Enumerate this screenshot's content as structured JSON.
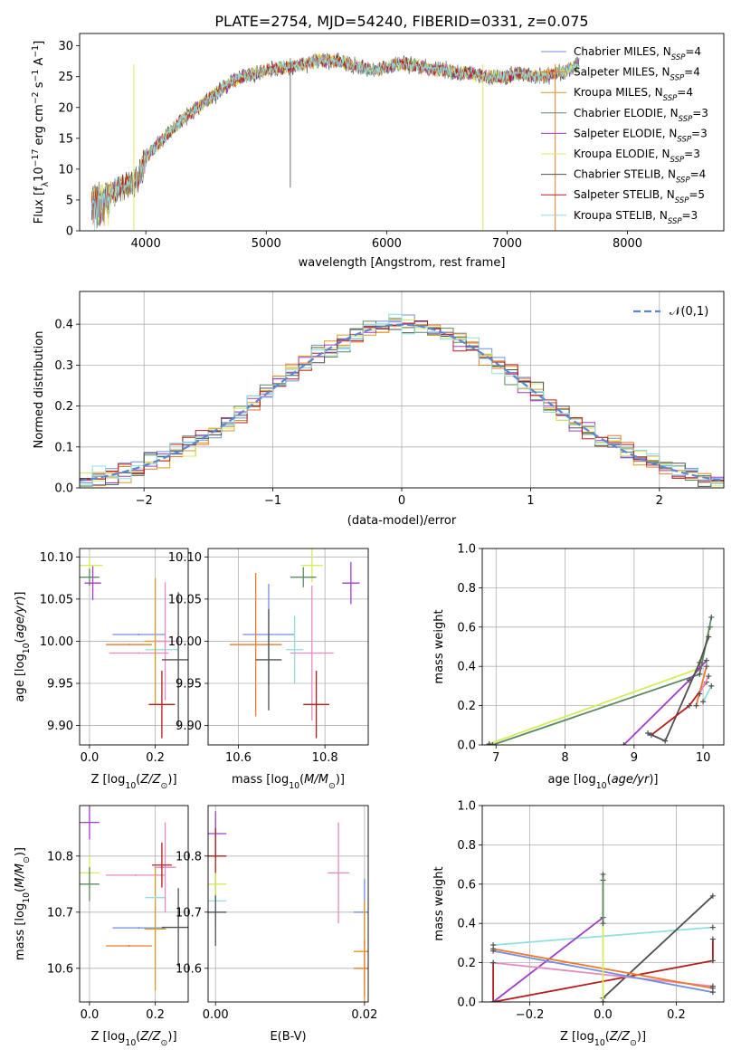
{
  "figure": {
    "title": "PLATE=2754, MJD=54240, FIBERID=0331, z=0.075"
  },
  "series_styles": [
    {
      "name": "Chabrier MILES",
      "nssp": "4",
      "color": "#6f8fe0"
    },
    {
      "name": "Salpeter MILES",
      "nssp": "4",
      "color": "#ee7a2a"
    },
    {
      "name": "Kroupa MILES",
      "nssp": "4",
      "color": "#dd9a1b"
    },
    {
      "name": "Chabrier ELODIE",
      "nssp": "3",
      "color": "#5a8a62"
    },
    {
      "name": "Salpeter ELODIE",
      "nssp": "3",
      "color": "#a03cc8"
    },
    {
      "name": "Kroupa ELODIE",
      "nssp": "3",
      "color": "#d4ec5a"
    },
    {
      "name": "Chabrier STELIB",
      "nssp": "4",
      "color": "#505050"
    },
    {
      "name": "Salpeter STELIB",
      "nssp": "5",
      "color": "#b81c1c"
    },
    {
      "name": "Kroupa STELIB",
      "nssp": "3",
      "color": "#8ee0e0"
    }
  ],
  "extra_colors": {
    "pink": "#e58ac0"
  },
  "chart_data": [
    {
      "id": "spectrum",
      "type": "line",
      "xlabel": "wavelength [Angstrom, rest frame]",
      "ylabel": "Flux [f_λ 10^-17 erg cm^-2 s^-1 A^-1]",
      "xlim": [
        3450,
        8800
      ],
      "ylim": [
        0,
        32
      ],
      "xticks": [
        4000,
        5000,
        6000,
        7000,
        8000
      ],
      "yticks": [
        0,
        5,
        10,
        15,
        20,
        25,
        30
      ],
      "legend_position": "top-right",
      "continuum": {
        "x": [
          3550,
          3700,
          3850,
          3930,
          4000,
          4100,
          4200,
          4300,
          4400,
          4500,
          4600,
          4700,
          4800,
          4900,
          5000,
          5100,
          5200,
          5300,
          5400,
          5500,
          5600,
          5700,
          5800,
          5900,
          6000,
          6100,
          6200,
          6300,
          6400,
          6500,
          6600,
          6700,
          6800,
          6900,
          7000,
          7100,
          7200,
          7300,
          7400,
          7500,
          7600,
          7700
        ],
        "y": [
          5,
          6,
          7.5,
          8,
          12,
          14,
          16,
          18,
          19.5,
          21,
          22.5,
          24,
          25,
          25.5,
          26,
          26.5,
          26.5,
          27,
          27.5,
          27.5,
          27.5,
          27,
          26.5,
          26,
          26.5,
          27,
          27,
          26.5,
          26,
          26,
          25.5,
          25.5,
          25,
          25,
          25,
          25.5,
          25,
          25,
          25.5,
          26,
          27,
          27
        ]
      },
      "spike_lines": [
        {
          "x": 3900,
          "color": "#d4ec5a"
        },
        {
          "x": 6800,
          "color": "#d4ec5a"
        },
        {
          "x": 7400,
          "color": "#ee7a2a"
        }
      ]
    },
    {
      "id": "residual-histogram",
      "type": "bar",
      "xlabel": "(data-model)/error",
      "ylabel": "Normed distribution",
      "xlim": [
        -2.5,
        2.5
      ],
      "ylim": [
        0,
        0.48
      ],
      "xticks": [
        -2,
        -1,
        0,
        1,
        2
      ],
      "yticks": [
        0.0,
        0.1,
        0.2,
        0.3,
        0.4
      ],
      "bin_width": 0.1,
      "reference_curve": {
        "label": "𝒩(0,1)",
        "mean": 0,
        "sigma": 1,
        "color": "#5a86d4"
      },
      "legend_position": "top-right"
    },
    {
      "id": "age-vs-Z",
      "type": "scatter",
      "xlabel": "Z [log10(Z/Z⊙)]",
      "ylabel": "age [log10(age/yr)]",
      "xlim": [
        -0.03,
        0.3
      ],
      "ylim": [
        9.877,
        10.11
      ],
      "xticks": [
        0.0,
        0.2
      ],
      "yticks": [
        9.9,
        9.95,
        10.0,
        10.05,
        10.1
      ],
      "points": [
        {
          "x": 0.15,
          "xerr": 0.08,
          "y": 10.008,
          "yerr": 0.0,
          "color": "#6f8fe0"
        },
        {
          "x": 0.12,
          "xerr": 0.07,
          "y": 9.996,
          "yerr": 0.0,
          "color": "#ee7a2a"
        },
        {
          "x": 0.0,
          "xerr": 0.04,
          "y": 10.09,
          "yerr": 0.01,
          "color": "#d4ec5a"
        },
        {
          "x": 0.0,
          "xerr": 0.03,
          "y": 10.076,
          "yerr": 0.01,
          "color": "#5a8a62"
        },
        {
          "x": 0.01,
          "xerr": 0.025,
          "y": 10.069,
          "yerr": 0.02,
          "color": "#a03cc8"
        },
        {
          "x": 0.22,
          "xerr": 0.05,
          "y": 9.99,
          "yerr": 0.0,
          "color": "#8ee0e0"
        },
        {
          "x": 0.15,
          "xerr": 0.09,
          "y": 9.986,
          "yerr": 0.0,
          "color": "#e58ac0"
        },
        {
          "x": 0.2,
          "xerr": 0.0,
          "y": 10.0,
          "yerr": 0.075,
          "color": "#dd9a1b"
        },
        {
          "x": 0.23,
          "xerr": 0.0,
          "y": 10.0,
          "yerr": 0.07,
          "color": "#e58ac0"
        },
        {
          "x": 0.27,
          "xerr": 0.05,
          "y": 9.978,
          "yerr": 0.08,
          "color": "#505050"
        },
        {
          "x": 0.22,
          "xerr": 0.04,
          "y": 9.925,
          "yerr": 0.04,
          "color": "#b81c1c"
        }
      ]
    },
    {
      "id": "age-vs-mass",
      "type": "scatter",
      "xlabel": "mass [log10(M/M⊙)]",
      "ylabel": "",
      "xlim": [
        10.53,
        10.9
      ],
      "ylim": [
        9.877,
        10.11
      ],
      "xticks": [
        10.6,
        10.8
      ],
      "yticks": [
        9.9,
        9.95,
        10.0,
        10.05,
        10.1
      ],
      "points": [
        {
          "x": 10.67,
          "xerr": 0.06,
          "y": 10.008,
          "yerr": 0.06,
          "color": "#6f8fe0"
        },
        {
          "x": 10.64,
          "xerr": 0.06,
          "y": 9.996,
          "yerr": 0.085,
          "color": "#ee7a2a"
        },
        {
          "x": 10.77,
          "xerr": 0.0,
          "y": 10.09,
          "yerr": 0.02,
          "color": "#d4ec5a"
        },
        {
          "x": 10.75,
          "xerr": 0.03,
          "y": 10.076,
          "yerr": 0.012,
          "color": "#5a8a62"
        },
        {
          "x": 10.86,
          "xerr": 0.02,
          "y": 10.069,
          "yerr": 0.025,
          "color": "#a03cc8"
        },
        {
          "x": 10.73,
          "xerr": 0.02,
          "y": 9.99,
          "yerr": 0.04,
          "color": "#8ee0e0"
        },
        {
          "x": 10.77,
          "xerr": 0.05,
          "y": 9.986,
          "yerr": 0.08,
          "color": "#e58ac0"
        },
        {
          "x": 10.67,
          "xerr": 0.03,
          "y": 9.978,
          "yerr": 0.06,
          "color": "#505050"
        },
        {
          "x": 10.78,
          "xerr": 0.03,
          "y": 9.925,
          "yerr": 0.04,
          "color": "#b81c1c"
        }
      ]
    },
    {
      "id": "mass-weight-vs-age",
      "type": "line",
      "xlabel": "age [log10(age/yr)]",
      "ylabel": "mass weight",
      "xlim": [
        6.8,
        10.3
      ],
      "ylim": [
        0,
        1.0
      ],
      "xticks": [
        7,
        8,
        9,
        10
      ],
      "yticks": [
        0.0,
        0.2,
        0.4,
        0.6,
        0.8,
        1.0
      ],
      "series": [
        {
          "color": "#d4ec5a",
          "x": [
            6.9,
            9.95,
            10.1
          ],
          "y": [
            0.005,
            0.39,
            0.6
          ]
        },
        {
          "color": "#5a8a62",
          "x": [
            6.95,
            9.95,
            10.12
          ],
          "y": [
            0.0,
            0.36,
            0.65
          ]
        },
        {
          "color": "#a03cc8",
          "x": [
            8.85,
            9.8,
            10.05
          ],
          "y": [
            0.0,
            0.33,
            0.43
          ]
        },
        {
          "color": "#505050",
          "x": [
            9.2,
            9.45,
            9.95,
            10.08
          ],
          "y": [
            0.06,
            0.02,
            0.42,
            0.55
          ]
        },
        {
          "color": "#b81c1c",
          "x": [
            9.25,
            9.8,
            10.05
          ],
          "y": [
            0.05,
            0.2,
            0.32
          ]
        },
        {
          "color": "#ee7a2a",
          "x": [
            9.9,
            10.05
          ],
          "y": [
            0.2,
            0.4
          ]
        },
        {
          "color": "#e58ac0",
          "x": [
            9.95,
            10.08
          ],
          "y": [
            0.26,
            0.35
          ]
        },
        {
          "color": "#8ee0e0",
          "x": [
            10.0,
            10.12
          ],
          "y": [
            0.22,
            0.3
          ]
        }
      ]
    },
    {
      "id": "mass-vs-Z",
      "type": "scatter",
      "xlabel": "Z [log10(Z/Z⊙)]",
      "ylabel": "mass [log10(M/M⊙)]",
      "xlim": [
        -0.03,
        0.3
      ],
      "ylim": [
        10.54,
        10.89
      ],
      "xticks": [
        0.0,
        0.2
      ],
      "yticks": [
        10.6,
        10.7,
        10.8
      ],
      "points": [
        {
          "x": 0.15,
          "xerr": 0.08,
          "y": 10.672,
          "yerr": 0.0,
          "color": "#6f8fe0"
        },
        {
          "x": 0.12,
          "xerr": 0.07,
          "y": 10.64,
          "yerr": 0.0,
          "color": "#ee7a2a"
        },
        {
          "x": 0.0,
          "xerr": 0.03,
          "y": 10.86,
          "yerr": 0.03,
          "color": "#a03cc8"
        },
        {
          "x": 0.0,
          "xerr": 0.03,
          "y": 10.77,
          "yerr": 0.03,
          "color": "#d4ec5a"
        },
        {
          "x": 0.0,
          "xerr": 0.03,
          "y": 10.75,
          "yerr": 0.03,
          "color": "#5a8a62"
        },
        {
          "x": 0.14,
          "xerr": 0.09,
          "y": 10.766,
          "yerr": 0.0,
          "color": "#e58ac0"
        },
        {
          "x": 0.2,
          "xerr": 0.0,
          "y": 10.67,
          "yerr": 0.11,
          "color": "#dd9a1b"
        },
        {
          "x": 0.2,
          "xerr": 0.03,
          "y": 10.726,
          "yerr": 0.0,
          "color": "#8ee0e0"
        },
        {
          "x": 0.23,
          "xerr": 0.0,
          "y": 10.78,
          "yerr": 0.08,
          "color": "#e58ac0"
        },
        {
          "x": 0.22,
          "xerr": 0.03,
          "y": 10.784,
          "yerr": 0.04,
          "color": "#b81c1c"
        },
        {
          "x": 0.27,
          "xerr": 0.05,
          "y": 10.673,
          "yerr": 0.07,
          "color": "#505050"
        }
      ]
    },
    {
      "id": "mass-vs-EBV",
      "type": "scatter",
      "xlabel": "E(B-V)",
      "ylabel": "",
      "xlim": [
        -0.001,
        0.0205
      ],
      "ylim": [
        10.54,
        10.89
      ],
      "xticks": [
        0.0,
        0.02
      ],
      "yticks": [
        10.6,
        10.7,
        10.8
      ],
      "points": [
        {
          "x": 0.0,
          "y": 10.84,
          "yerr": 0.04,
          "color": "#a03cc8"
        },
        {
          "x": 0.0,
          "y": 10.8,
          "yerr": 0.05,
          "color": "#b81c1c"
        },
        {
          "x": 0.0,
          "y": 10.72,
          "yerr": 0.04,
          "color": "#8ee0e0"
        },
        {
          "x": 0.0,
          "y": 10.7,
          "yerr": 0.06,
          "color": "#505050"
        },
        {
          "x": 0.0,
          "y": 10.75,
          "yerr": 0.02,
          "color": "#d4ec5a"
        },
        {
          "x": 0.0165,
          "y": 10.77,
          "yerr": 0.09,
          "color": "#e58ac0"
        },
        {
          "x": 0.02,
          "y": 10.7,
          "yerr": 0.06,
          "color": "#6f8fe0"
        },
        {
          "x": 0.02,
          "y": 10.63,
          "yerr": 0.09,
          "color": "#dd9a1b"
        },
        {
          "x": 0.02,
          "y": 10.6,
          "yerr": 0.05,
          "color": "#ee7a2a"
        }
      ]
    },
    {
      "id": "mass-weight-vs-Z",
      "type": "line",
      "xlabel": "Z [log10(Z/Z⊙)]",
      "ylabel": "mass weight",
      "xlim": [
        -0.33,
        0.33
      ],
      "ylim": [
        0,
        1.0
      ],
      "xticks": [
        -0.2,
        0.0,
        0.2
      ],
      "yticks": [
        0.0,
        0.2,
        0.4,
        0.6,
        0.8,
        1.0
      ],
      "series": [
        {
          "color": "#8ee0e0",
          "x": [
            -0.3,
            0.3
          ],
          "y": [
            0.29,
            0.38
          ]
        },
        {
          "color": "#a03cc8",
          "x": [
            -0.3,
            0.0
          ],
          "y": [
            0.0,
            0.43
          ]
        },
        {
          "color": "#505050",
          "x": [
            0.0,
            0.0,
            0.3
          ],
          "y": [
            0.0,
            0.02,
            0.54
          ]
        },
        {
          "color": "#b81c1c",
          "x": [
            -0.3,
            -0.3,
            0.3,
            0.3
          ],
          "y": [
            0.2,
            0.0,
            0.21,
            0.32
          ]
        },
        {
          "color": "#e58ac0",
          "x": [
            -0.3,
            0.3
          ],
          "y": [
            0.2,
            0.08
          ]
        },
        {
          "color": "#ee7a2a",
          "x": [
            -0.3,
            0.3
          ],
          "y": [
            0.27,
            0.07
          ]
        },
        {
          "color": "#6f8fe0",
          "x": [
            -0.3,
            0.3
          ],
          "y": [
            0.26,
            0.05
          ]
        },
        {
          "color": "#d4ec5a",
          "x": [
            0.0,
            0.0
          ],
          "y": [
            0.0,
            0.62
          ]
        },
        {
          "color": "#5a8a62",
          "x": [
            0.0,
            0.0
          ],
          "y": [
            0.4,
            0.65
          ]
        }
      ]
    }
  ]
}
